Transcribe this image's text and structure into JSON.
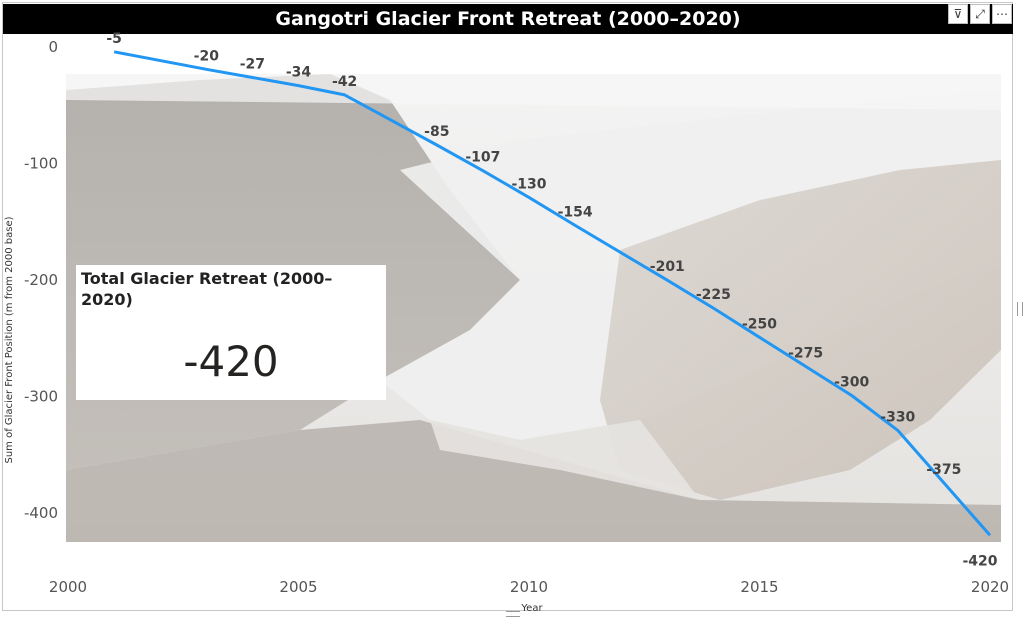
{
  "title": "Gangotri Glacier Front Retreat (2000–2020)",
  "header_icons": [
    "filter-icon",
    "focus-mode-icon",
    "more-options-icon"
  ],
  "header_glyphs": [
    "⊽",
    "⤢",
    "⋯"
  ],
  "kpi": {
    "title": "Total Glacier Retreat (2000–2020)",
    "value": "-420"
  },
  "colors": {
    "line": "#2196F3",
    "title_bg": "#000000",
    "title_fg": "#ffffff"
  },
  "chart_data": {
    "type": "line",
    "title": "Gangotri Glacier Front Retreat (2000–2020)",
    "xlabel": "Year",
    "ylabel": "Sum of Glacier Front Position (m from 2000 base)",
    "xlim": [
      2000,
      2020
    ],
    "ylim": [
      -430,
      0
    ],
    "x_ticks": [
      2000,
      2005,
      2010,
      2015,
      2020
    ],
    "y_ticks": [
      0,
      -100,
      -200,
      -300,
      -400
    ],
    "grid": false,
    "legend": "none",
    "background": "glacier photograph",
    "series": [
      {
        "x": [
          2001,
          2003,
          2004,
          2005,
          2006,
          2008,
          2009,
          2010,
          2011,
          2013,
          2014,
          2015,
          2016,
          2017,
          2018,
          2019,
          2020
        ],
        "values": [
          -5,
          -20,
          -27,
          -34,
          -42,
          -85,
          -107,
          -130,
          -154,
          -201,
          -225,
          -250,
          -275,
          -300,
          -330,
          -375,
          -420
        ]
      }
    ]
  }
}
